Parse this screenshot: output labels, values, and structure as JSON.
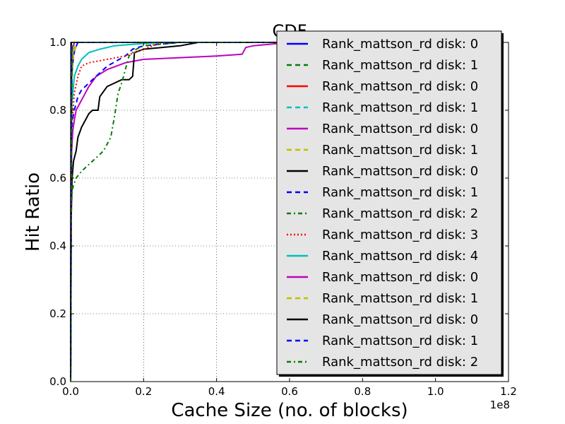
{
  "chart_data": {
    "type": "line",
    "title": "CDF",
    "xlabel": "Cache Size (no. of blocks)",
    "ylabel": "Hit Ratio",
    "x_multiplier_label": "1e8",
    "xlim": [
      0,
      1.2
    ],
    "ylim": [
      0,
      1.0
    ],
    "x_ticks": [
      "0.0",
      "0.2",
      "0.4",
      "0.6",
      "0.8",
      "1.0",
      "1.2"
    ],
    "y_ticks": [
      "0.0",
      "0.2",
      "0.4",
      "0.6",
      "0.8",
      "1.0"
    ],
    "grid": true,
    "legend_position": "upper-right",
    "series": [
      {
        "name": "Rank_mattson_rd disk: 0",
        "color": "#0000ff",
        "style": "solid",
        "x": [
          0,
          0.001,
          0.003,
          0.008,
          0.012,
          0.02,
          0.6
        ],
        "y": [
          0,
          0.5,
          0.9,
          0.96,
          0.98,
          1.0,
          1.0
        ]
      },
      {
        "name": "Rank_mattson_rd disk: 1",
        "color": "#008000",
        "style": "dashed",
        "x": [
          0,
          0.002,
          0.005,
          0.01,
          0.015,
          0.6
        ],
        "y": [
          0,
          0.8,
          0.95,
          0.99,
          1.0,
          1.0
        ]
      },
      {
        "name": "Rank_mattson_rd disk: 0",
        "color": "#ff0000",
        "style": "solid",
        "x": [
          0,
          0.001,
          0.004,
          0.01,
          0.6
        ],
        "y": [
          0,
          0.85,
          0.97,
          1.0,
          1.0
        ]
      },
      {
        "name": "Rank_mattson_rd disk: 1",
        "color": "#00bfbf",
        "style": "dashed",
        "x": [
          0,
          0.002,
          0.006,
          0.012,
          0.6
        ],
        "y": [
          0,
          0.88,
          0.97,
          1.0,
          1.0
        ]
      },
      {
        "name": "Rank_mattson_rd disk: 0",
        "color": "#bf00bf",
        "style": "solid",
        "x": [
          0,
          0.001,
          0.003,
          0.006,
          0.01,
          0.015,
          0.025,
          0.035,
          0.05,
          0.07,
          0.1,
          0.15,
          0.2,
          0.3,
          0.4,
          0.47,
          0.48,
          0.5,
          0.6
        ],
        "y": [
          0,
          0.6,
          0.68,
          0.74,
          0.77,
          0.8,
          0.82,
          0.84,
          0.87,
          0.9,
          0.92,
          0.94,
          0.95,
          0.955,
          0.96,
          0.965,
          0.985,
          0.99,
          1.0
        ]
      },
      {
        "name": "Rank_mattson_rd disk: 1",
        "color": "#bfbf00",
        "style": "dashed",
        "x": [
          0,
          0.002,
          0.006,
          0.012,
          0.02,
          0.6
        ],
        "y": [
          0,
          0.85,
          0.95,
          0.98,
          1.0,
          1.0
        ]
      },
      {
        "name": "Rank_mattson_rd disk: 0",
        "color": "#000000",
        "style": "solid",
        "x": [
          0,
          0.002,
          0.004,
          0.008,
          0.015,
          0.02,
          0.03,
          0.04,
          0.05,
          0.06,
          0.075,
          0.08,
          0.1,
          0.12,
          0.14,
          0.16,
          0.17,
          0.175,
          0.2,
          0.3,
          0.35,
          0.6
        ],
        "y": [
          0,
          0.5,
          0.6,
          0.65,
          0.68,
          0.72,
          0.75,
          0.77,
          0.79,
          0.8,
          0.8,
          0.84,
          0.87,
          0.88,
          0.89,
          0.89,
          0.9,
          0.97,
          0.98,
          0.99,
          1.0,
          1.0
        ]
      },
      {
        "name": "Rank_mattson_rd disk: 1",
        "color": "#0000ff",
        "style": "dashed",
        "x": [
          0,
          0.002,
          0.005,
          0.01,
          0.015,
          0.02,
          0.03,
          0.05,
          0.08,
          0.1,
          0.15,
          0.17,
          0.2,
          0.3
        ],
        "y": [
          0,
          0.72,
          0.77,
          0.8,
          0.82,
          0.84,
          0.86,
          0.88,
          0.91,
          0.93,
          0.96,
          0.98,
          0.99,
          1.0
        ]
      },
      {
        "name": "Rank_mattson_rd disk: 2",
        "color": "#008000",
        "style": "dashdot",
        "x": [
          0,
          0.001,
          0.002,
          0.004,
          0.008,
          0.015,
          0.03,
          0.05,
          0.07,
          0.09,
          0.1,
          0.11,
          0.12,
          0.13,
          0.14,
          0.15,
          0.16,
          0.18,
          0.2,
          0.25,
          0.3
        ],
        "y": [
          0,
          0.4,
          0.5,
          0.56,
          0.58,
          0.6,
          0.62,
          0.64,
          0.66,
          0.68,
          0.7,
          0.72,
          0.78,
          0.85,
          0.88,
          0.92,
          0.96,
          0.98,
          0.99,
          0.995,
          1.0
        ]
      },
      {
        "name": "Rank_mattson_rd disk: 3",
        "color": "#ff0000",
        "style": "dotted",
        "x": [
          0,
          0.001,
          0.003,
          0.01,
          0.02,
          0.03,
          0.05,
          0.1,
          0.15,
          0.2,
          0.25
        ],
        "y": [
          0,
          0.3,
          0.75,
          0.85,
          0.9,
          0.93,
          0.94,
          0.95,
          0.96,
          0.98,
          1.0
        ]
      },
      {
        "name": "Rank_mattson_rd disk: 4",
        "color": "#00bfbf",
        "style": "solid",
        "x": [
          0,
          0.002,
          0.01,
          0.02,
          0.03,
          0.05,
          0.08,
          0.12,
          0.18,
          0.25
        ],
        "y": [
          0,
          0.8,
          0.9,
          0.93,
          0.95,
          0.97,
          0.98,
          0.99,
          0.995,
          1.0
        ]
      },
      {
        "name": "Rank_mattson_rd disk: 0",
        "color": "#bf00bf",
        "style": "solid",
        "x": [
          0,
          0.001,
          0.004,
          0.01,
          0.6
        ],
        "y": [
          0,
          0.9,
          0.97,
          1.0,
          1.0
        ]
      },
      {
        "name": "Rank_mattson_rd disk: 1",
        "color": "#bfbf00",
        "style": "dashed",
        "x": [
          0,
          0.003,
          0.01,
          0.6
        ],
        "y": [
          0,
          0.9,
          1.0,
          1.0
        ]
      },
      {
        "name": "Rank_mattson_rd disk: 0",
        "color": "#000000",
        "style": "solid",
        "x": [
          0,
          0.002,
          0.6
        ],
        "y": [
          0,
          1.0,
          1.0
        ]
      },
      {
        "name": "Rank_mattson_rd disk: 1",
        "color": "#0000ff",
        "style": "dashed",
        "x": [
          0,
          0.003,
          0.6
        ],
        "y": [
          0,
          1.0,
          1.0
        ]
      },
      {
        "name": "Rank_mattson_rd disk: 2",
        "color": "#008000",
        "style": "dashdot",
        "x": [
          0,
          0.004,
          0.6
        ],
        "y": [
          0,
          1.0,
          1.0
        ]
      }
    ]
  }
}
